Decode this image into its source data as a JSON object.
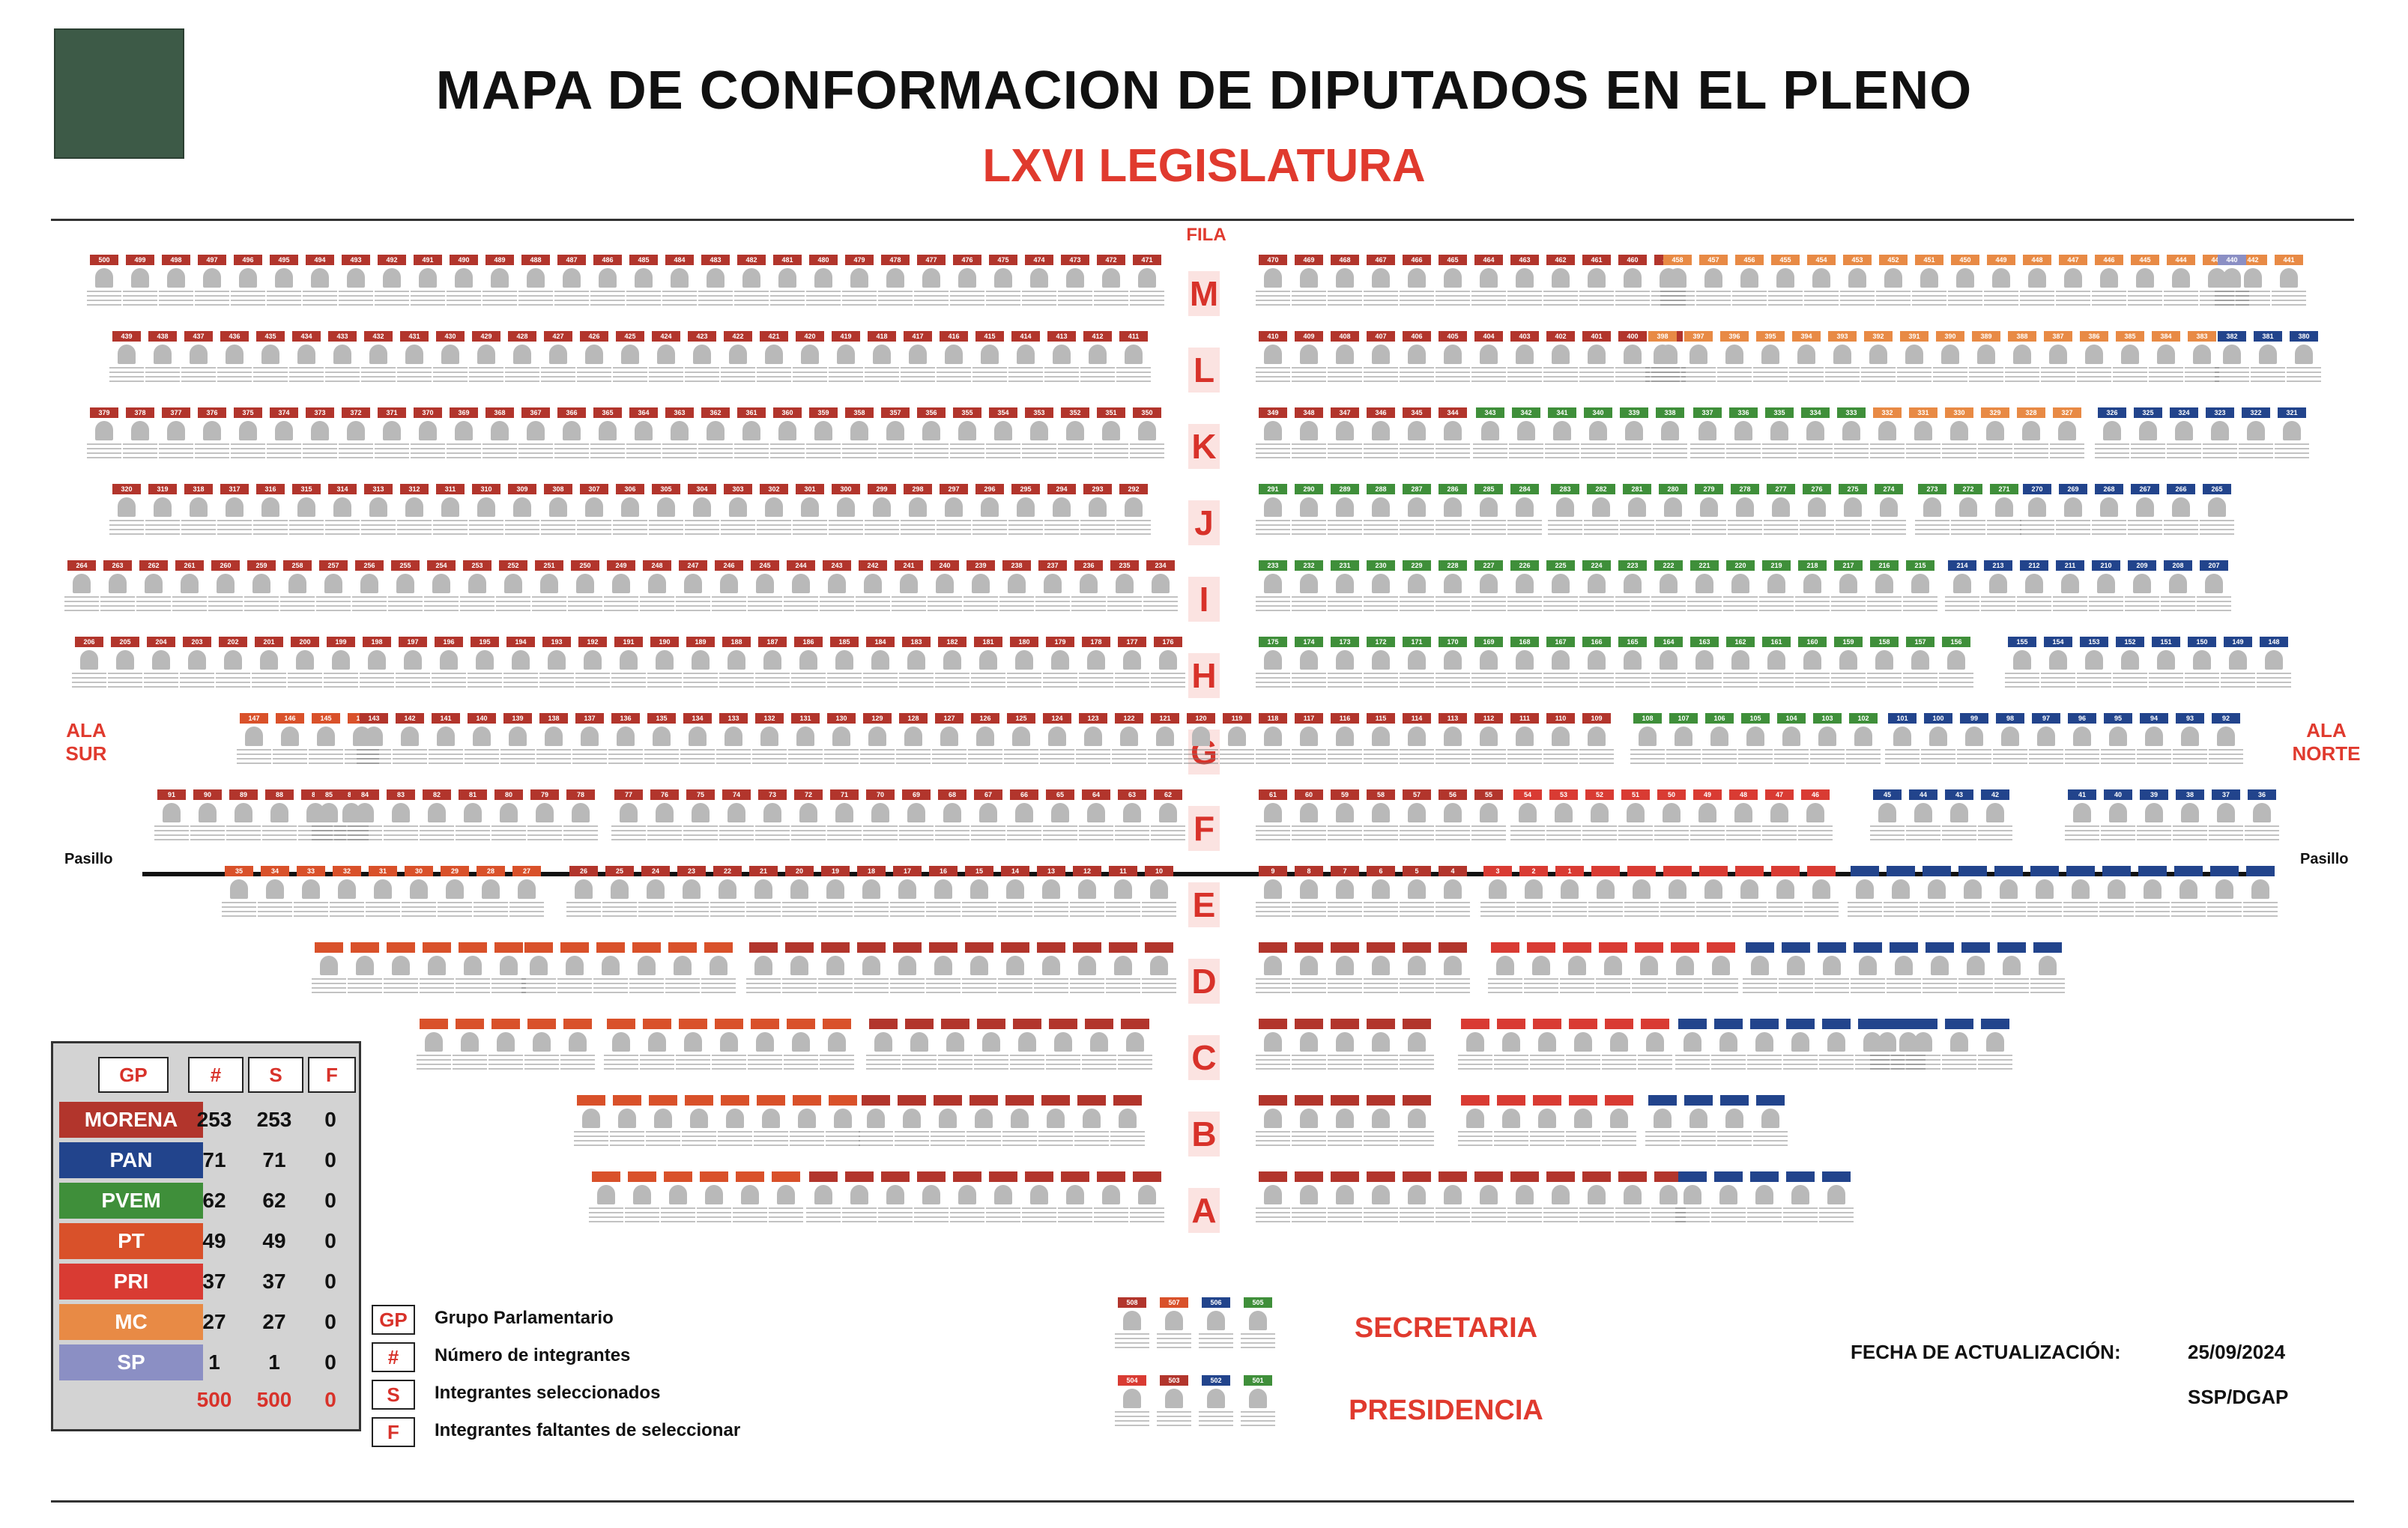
{
  "header": {
    "title": "MAPA DE CONFORMACION DE DIPUTADOS EN EL  PLENO",
    "subtitle": "LXVI LEGISLATURA"
  },
  "labels": {
    "fila": "FILA",
    "ala_sur": "ALA\nSUR",
    "ala_norte": "ALA\nNORTE",
    "pasillo_left": "Pasillo",
    "pasillo_right": "Pasillo",
    "secretaria": "SECRETARIA",
    "presidencia": "PRESIDENCIA",
    "fecha_label": "FECHA DE ACTUALIZACIÓN:",
    "fecha_value": "25/09/2024",
    "office": "SSP/DGAP"
  },
  "rows": [
    "M",
    "L",
    "K",
    "J",
    "I",
    "H",
    "G",
    "F",
    "E",
    "D",
    "C",
    "B",
    "A"
  ],
  "colors": {
    "MORENA": "#b2352c",
    "PAN": "#22448c",
    "PVEM": "#3f8f3a",
    "PT": "#d9512a",
    "PRI": "#d93b33",
    "MC": "#e88a45",
    "SP": "#8b8fc4"
  },
  "summary": {
    "headers": [
      "GP",
      "#",
      "S",
      "F"
    ],
    "parties": [
      {
        "name": "MORENA",
        "count": "253",
        "selected": "253",
        "missing": "0",
        "color": "#b2352c"
      },
      {
        "name": "PAN",
        "count": "71",
        "selected": "71",
        "missing": "0",
        "color": "#22448c"
      },
      {
        "name": "PVEM",
        "count": "62",
        "selected": "62",
        "missing": "0",
        "color": "#3f8f3a"
      },
      {
        "name": "PT",
        "count": "49",
        "selected": "49",
        "missing": "0",
        "color": "#d9512a"
      },
      {
        "name": "PRI",
        "count": "37",
        "selected": "37",
        "missing": "0",
        "color": "#d93b33"
      },
      {
        "name": "MC",
        "count": "27",
        "selected": "27",
        "missing": "0",
        "color": "#e88a45"
      },
      {
        "name": "SP",
        "count": "1",
        "selected": "1",
        "missing": "0",
        "color": "#8b8fc4"
      }
    ],
    "totals": {
      "count": "500",
      "selected": "500",
      "missing": "0"
    }
  },
  "legend": [
    {
      "key": "GP",
      "text": "Grupo Parlamentario"
    },
    {
      "key": "#",
      "text": "Número de integrantes"
    },
    {
      "key": "S",
      "text": "Integrantes seleccionados"
    },
    {
      "key": "F",
      "text": "Integrantes faltantes de seleccionar"
    }
  ],
  "secretaria_seats": [
    {
      "num": "508",
      "party": "MORENA"
    },
    {
      "num": "507",
      "party": "PT"
    },
    {
      "num": "506",
      "party": "PAN"
    },
    {
      "num": "505",
      "party": "PVEM"
    }
  ],
  "presidencia_seats": [
    {
      "num": "504",
      "party": "PRI"
    },
    {
      "num": "503",
      "party": "MORENA"
    },
    {
      "num": "502",
      "party": "PAN"
    },
    {
      "num": "501",
      "party": "PVEM"
    }
  ]
}
